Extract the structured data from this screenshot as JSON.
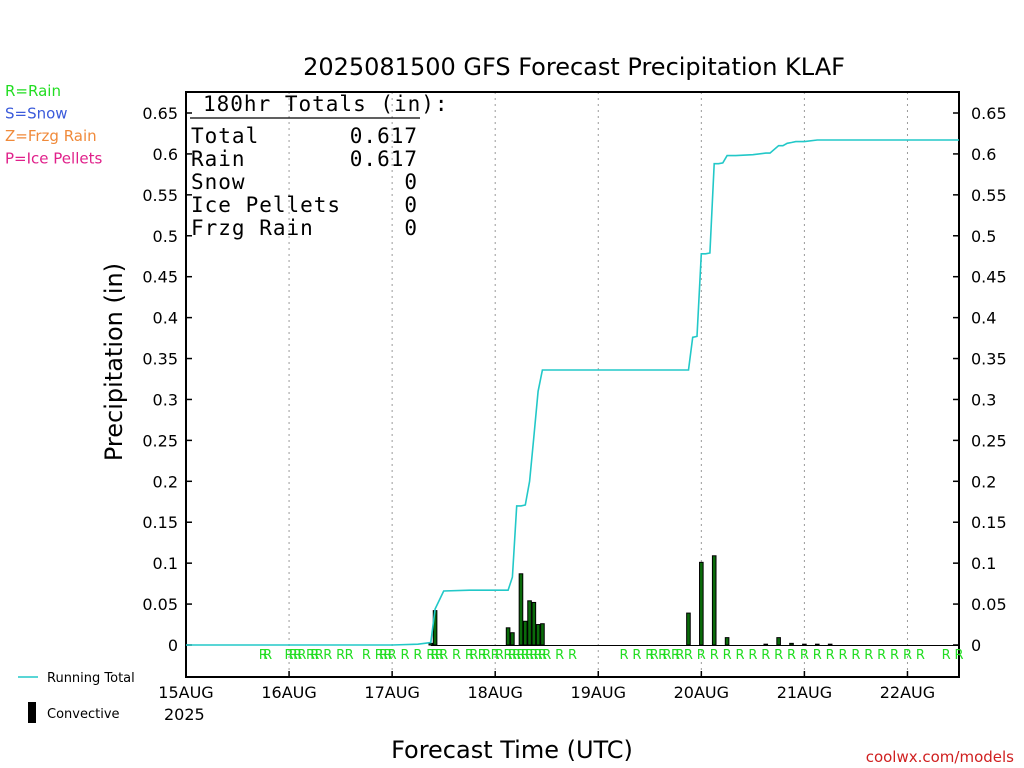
{
  "chart_data": {
    "type": "bar",
    "title": "2025081500 GFS Forecast Precipitation KLAF",
    "xlabel": "Forecast Time (UTC)",
    "ylabel": "Precipitation (in)",
    "ylim": [
      0,
      0.67
    ],
    "y_ticks": [
      0,
      0.05,
      0.1,
      0.15,
      0.2,
      0.25,
      0.3,
      0.35,
      0.4,
      0.45,
      0.5,
      0.55,
      0.6,
      0.65
    ],
    "y_tick_labels": [
      "0",
      "0.05",
      "0.1",
      "0.15",
      "0.2",
      "0.25",
      "0.3",
      "0.35",
      "0.4",
      "0.45",
      "0.5",
      "0.55",
      "0.6",
      "0.65"
    ],
    "x_unit": "hours since 15AUG 00Z",
    "xlim": [
      0,
      180
    ],
    "x_ticks": [
      0,
      24,
      48,
      72,
      96,
      120,
      144,
      168
    ],
    "x_tick_labels": [
      "15AUG",
      "16AUG",
      "17AUG",
      "18AUG",
      "19AUG",
      "20AUG",
      "21AUG",
      "22AUG"
    ],
    "x_year_label": "2025",
    "grid": true,
    "legend_left": [
      {
        "label": "R=Rain",
        "color": "#22dd22"
      },
      {
        "label": "S=Snow",
        "color": "#3b5bdb"
      },
      {
        "label": "Z=Frzg Rain",
        "color": "#f08a3a"
      },
      {
        "label": "P=Ice Pellets",
        "color": "#e0208a"
      }
    ],
    "legend_bottom": [
      {
        "label": "Running Total",
        "color": "#22c8c8",
        "kind": "line"
      },
      {
        "label": "Convective",
        "color": "#000000",
        "kind": "bar"
      }
    ],
    "totals": {
      "header": "180hr Totals (in):",
      "rows": [
        {
          "label": "Total",
          "value": "0.617"
        },
        {
          "label": "Rain",
          "value": "0.617"
        },
        {
          "label": "Snow",
          "value": "0"
        },
        {
          "label": "Ice Pellets",
          "value": "0"
        },
        {
          "label": "Frzg Rain",
          "value": "0"
        }
      ]
    },
    "series": [
      {
        "name": "Running Total",
        "type": "line",
        "color": "#22c8c8",
        "x": [
          0,
          48,
          54,
          57,
          58,
          60,
          66,
          72,
          75,
          76,
          77,
          78,
          79,
          80,
          81,
          82,
          83,
          84,
          85,
          90,
          96,
          102,
          108,
          114,
          117,
          118,
          119,
          120,
          121,
          122,
          123,
          124,
          125,
          126,
          127,
          128,
          132,
          135,
          136,
          138,
          139,
          140,
          141,
          142,
          144,
          147,
          148,
          150,
          156,
          162,
          168,
          174,
          180
        ],
        "y": [
          0,
          0,
          0.001,
          0.003,
          0.044,
          0.066,
          0.067,
          0.067,
          0.067,
          0.083,
          0.17,
          0.17,
          0.171,
          0.2,
          0.255,
          0.31,
          0.336,
          0.336,
          0.336,
          0.336,
          0.336,
          0.336,
          0.336,
          0.336,
          0.336,
          0.376,
          0.377,
          0.478,
          0.478,
          0.479,
          0.588,
          0.588,
          0.589,
          0.598,
          0.598,
          0.598,
          0.599,
          0.601,
          0.601,
          0.61,
          0.61,
          0.613,
          0.614,
          0.615,
          0.615,
          0.617,
          0.617,
          0.617,
          0.617,
          0.617,
          0.617,
          0.617,
          0.617
        ]
      },
      {
        "name": "Convective",
        "type": "bar",
        "color": "#000000",
        "fill": "#0a6b0a",
        "x": [
          57,
          58,
          75,
          76,
          78,
          79,
          80,
          81,
          82,
          83,
          117,
          120,
          123,
          126,
          135,
          138,
          141,
          144,
          147,
          150
        ],
        "y": [
          0.002,
          0.042,
          0.021,
          0.015,
          0.087,
          0.029,
          0.054,
          0.052,
          0.025,
          0.026,
          0.039,
          0.101,
          0.109,
          0.009,
          0.001,
          0.009,
          0.002,
          0.001,
          0.001,
          0.001
        ]
      }
    ],
    "precip_type_labels": {
      "letter": "R",
      "color": "#22dd22",
      "x": [
        18,
        19,
        24,
        25,
        26,
        27,
        29,
        30,
        31,
        33,
        36,
        38,
        42,
        45,
        46,
        47,
        48,
        51,
        54,
        57,
        58,
        59,
        60,
        63,
        66,
        67,
        69,
        70,
        72,
        73,
        75,
        76,
        77,
        78,
        79,
        80,
        81,
        82,
        83,
        84,
        87,
        90,
        102,
        105,
        108,
        109,
        111,
        112,
        114,
        115,
        117,
        120,
        123,
        126,
        129,
        132,
        135,
        138,
        141,
        144,
        147,
        150,
        153,
        156,
        159,
        162,
        165,
        168,
        171,
        177,
        180
      ]
    },
    "watermark": "coolwx.com/models"
  }
}
